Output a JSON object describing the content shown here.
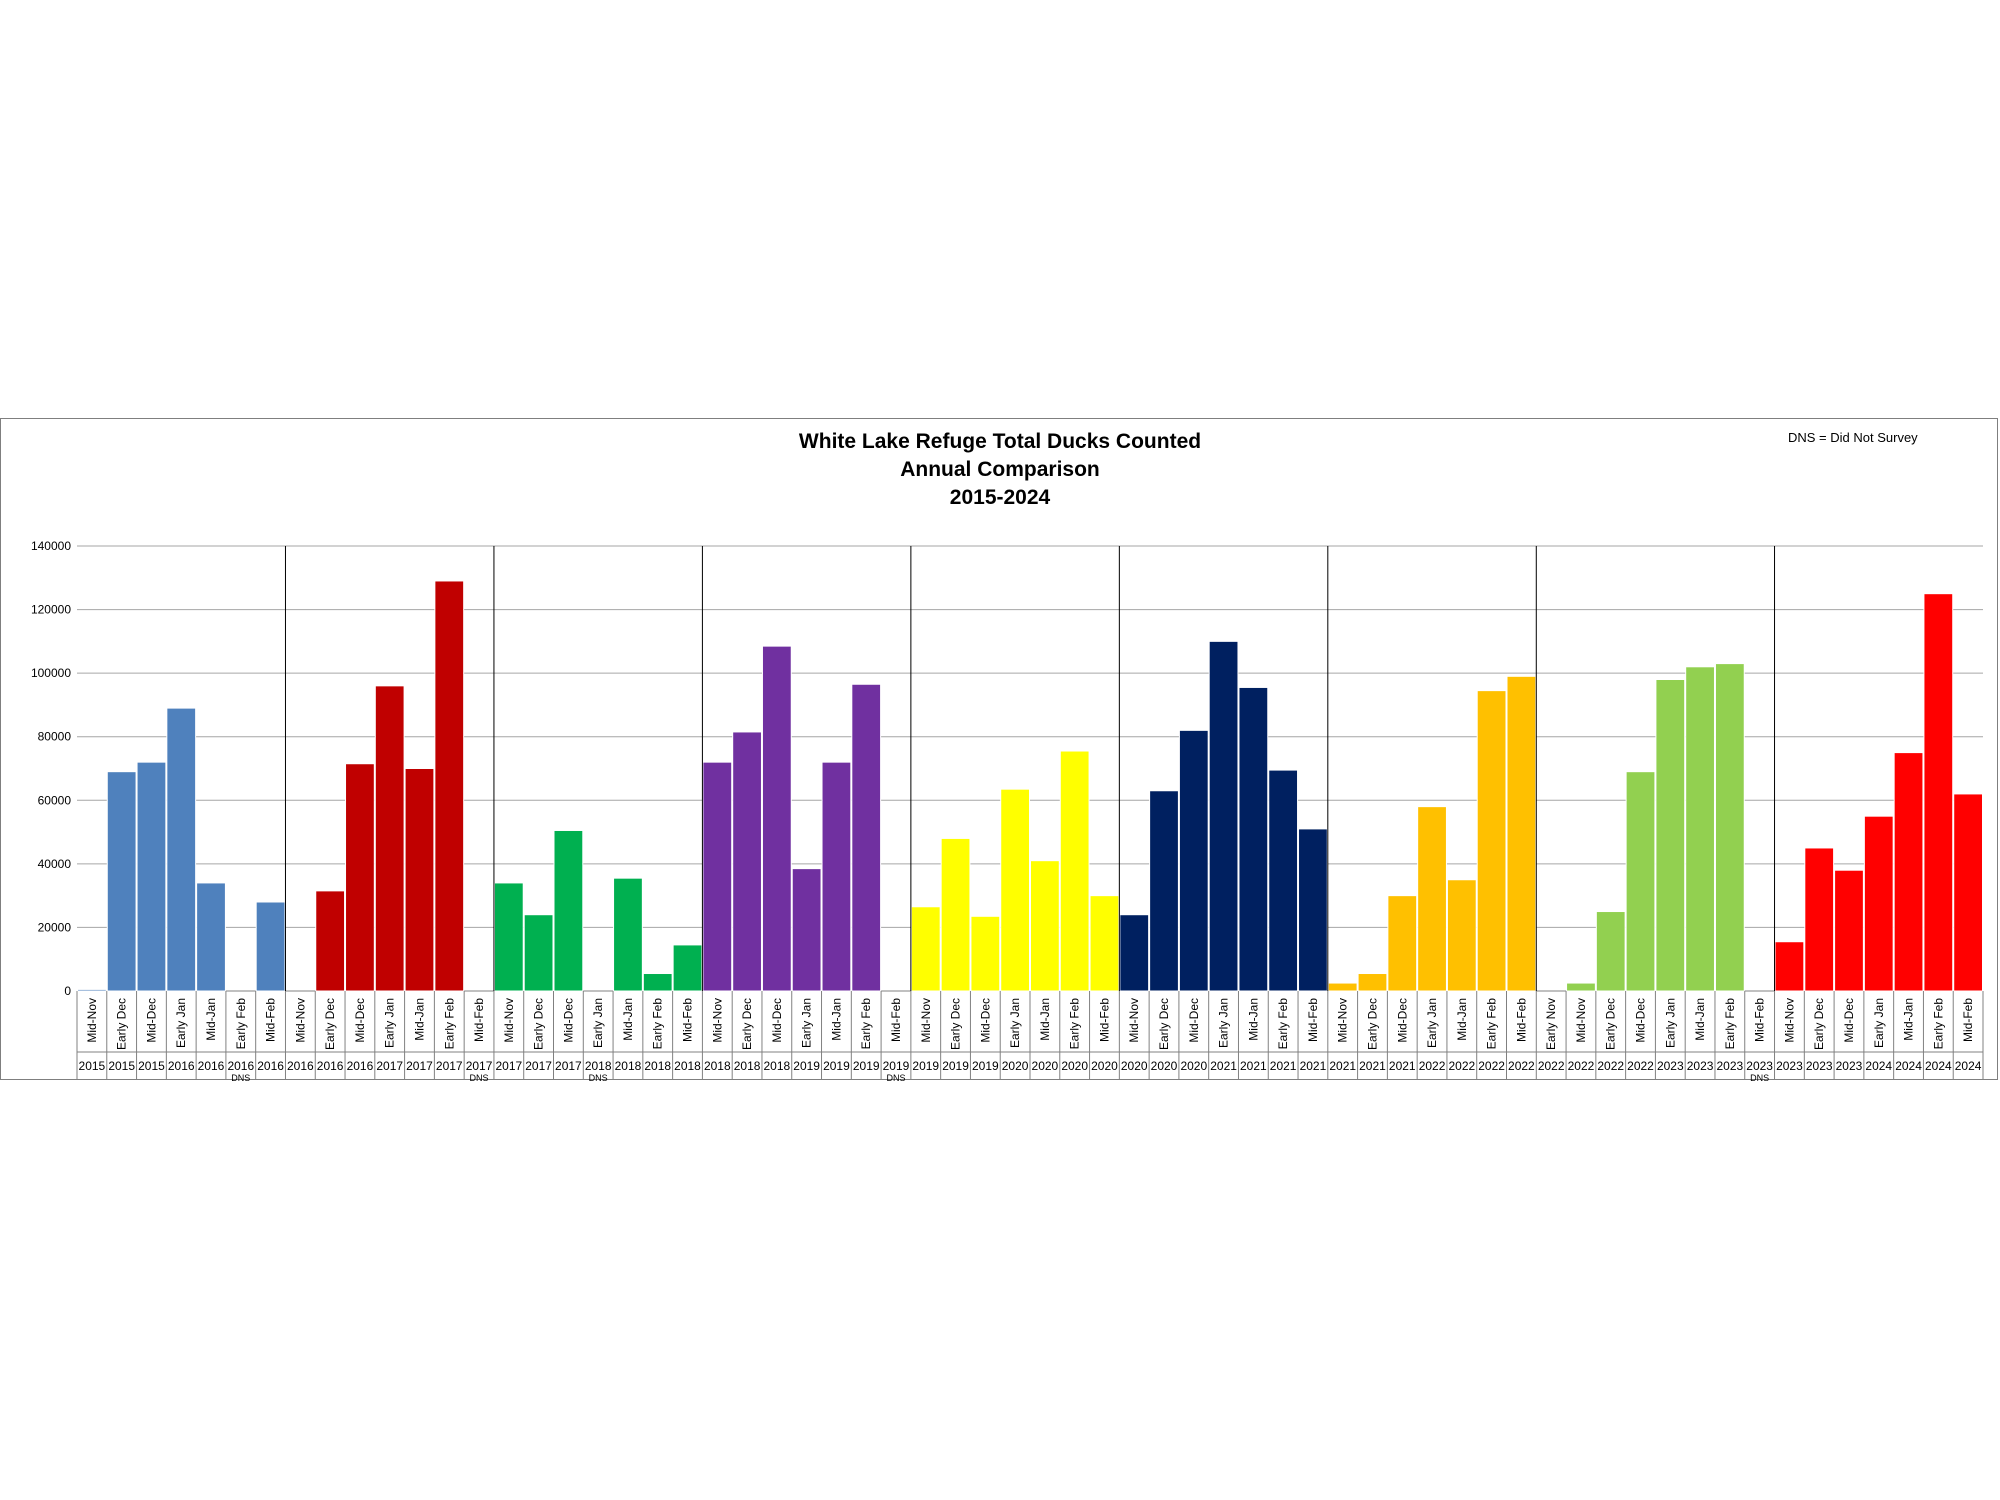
{
  "chart_data": {
    "type": "bar",
    "title": [
      "White Lake Refuge Total Ducks Counted",
      "Annual Comparison",
      "2015-2024"
    ],
    "note": "DNS = Did Not Survey",
    "dns_label": "DNS",
    "ylim": [
      0,
      140000
    ],
    "yticks": [
      "0",
      "20000",
      "40000",
      "60000",
      "80000",
      "100000",
      "120000",
      "140000"
    ],
    "grid": true,
    "categories": [
      {
        "label": "Mid-Nov",
        "year": "2015",
        "value": 500
      },
      {
        "label": "Early Dec",
        "year": "2015",
        "value": 69000
      },
      {
        "label": "Mid-Dec",
        "year": "2015",
        "value": 72000
      },
      {
        "label": "Early Jan",
        "year": "2016",
        "value": 89000
      },
      {
        "label": "Mid-Jan",
        "year": "2016",
        "value": 34000
      },
      {
        "label": "Early Feb",
        "year": "2016",
        "value": 0,
        "dns": true
      },
      {
        "label": "Mid-Feb",
        "year": "2016",
        "value": 28000
      },
      {
        "label": "Mid-Nov",
        "year": "2016",
        "value": 0
      },
      {
        "label": "Early Dec",
        "year": "2016",
        "value": 31500
      },
      {
        "label": "Mid-Dec",
        "year": "2016",
        "value": 71500
      },
      {
        "label": "Early Jan",
        "year": "2017",
        "value": 96000
      },
      {
        "label": "Mid-Jan",
        "year": "2017",
        "value": 70000
      },
      {
        "label": "Early Feb",
        "year": "2017",
        "value": 129000
      },
      {
        "label": "Mid-Feb",
        "year": "2017",
        "value": 0,
        "dns": true
      },
      {
        "label": "Mid-Nov",
        "year": "2017",
        "value": 34000
      },
      {
        "label": "Early Dec",
        "year": "2017",
        "value": 24000
      },
      {
        "label": "Mid-Dec",
        "year": "2017",
        "value": 50500
      },
      {
        "label": "Early Jan",
        "year": "2018",
        "value": 0,
        "dns": true
      },
      {
        "label": "Mid-Jan",
        "year": "2018",
        "value": 35500
      },
      {
        "label": "Early Feb",
        "year": "2018",
        "value": 5500
      },
      {
        "label": "Mid-Feb",
        "year": "2018",
        "value": 14500
      },
      {
        "label": "Mid-Nov",
        "year": "2018",
        "value": 72000
      },
      {
        "label": "Early Dec",
        "year": "2018",
        "value": 81500
      },
      {
        "label": "Mid-Dec",
        "year": "2018",
        "value": 108500
      },
      {
        "label": "Early Jan",
        "year": "2019",
        "value": 38500
      },
      {
        "label": "Mid-Jan",
        "year": "2019",
        "value": 72000
      },
      {
        "label": "Early Feb",
        "year": "2019",
        "value": 96500
      },
      {
        "label": "Mid-Feb",
        "year": "2019",
        "value": 0,
        "dns": true
      },
      {
        "label": "Mid-Nov",
        "year": "2019",
        "value": 26500
      },
      {
        "label": "Early Dec",
        "year": "2019",
        "value": 48000
      },
      {
        "label": "Mid-Dec",
        "year": "2019",
        "value": 23500
      },
      {
        "label": "Early Jan",
        "year": "2020",
        "value": 63500
      },
      {
        "label": "Mid-Jan",
        "year": "2020",
        "value": 41000
      },
      {
        "label": "Early Feb",
        "year": "2020",
        "value": 75500
      },
      {
        "label": "Mid-Feb",
        "year": "2020",
        "value": 30000
      },
      {
        "label": "Mid-Nov",
        "year": "2020",
        "value": 24000
      },
      {
        "label": "Early Dec",
        "year": "2020",
        "value": 63000
      },
      {
        "label": "Mid-Dec",
        "year": "2020",
        "value": 82000
      },
      {
        "label": "Early Jan",
        "year": "2021",
        "value": 110000
      },
      {
        "label": "Mid-Jan",
        "year": "2021",
        "value": 95500
      },
      {
        "label": "Early Feb",
        "year": "2021",
        "value": 69500
      },
      {
        "label": "Mid-Feb",
        "year": "2021",
        "value": 51000
      },
      {
        "label": "Mid-Nov",
        "year": "2021",
        "value": 2500
      },
      {
        "label": "Early Dec",
        "year": "2021",
        "value": 5500
      },
      {
        "label": "Mid-Dec",
        "year": "2021",
        "value": 30000
      },
      {
        "label": "Early Jan",
        "year": "2022",
        "value": 58000
      },
      {
        "label": "Mid-Jan",
        "year": "2022",
        "value": 35000
      },
      {
        "label": "Early Feb",
        "year": "2022",
        "value": 94500
      },
      {
        "label": "Mid-Feb",
        "year": "2022",
        "value": 99000
      },
      {
        "label": "Early Nov",
        "year": "2022",
        "value": 0
      },
      {
        "label": "Mid-Nov",
        "year": "2022",
        "value": 2500
      },
      {
        "label": "Early Dec",
        "year": "2022",
        "value": 25000
      },
      {
        "label": "Mid-Dec",
        "year": "2022",
        "value": 69000
      },
      {
        "label": "Early Jan",
        "year": "2023",
        "value": 98000
      },
      {
        "label": "Mid-Jan",
        "year": "2023",
        "value": 102000
      },
      {
        "label": "Early Feb",
        "year": "2023",
        "value": 103000
      },
      {
        "label": "Mid-Feb",
        "year": "2023",
        "value": 0,
        "dns": true
      },
      {
        "label": "Mid-Nov",
        "year": "2023",
        "value": 15500
      },
      {
        "label": "Early Dec",
        "year": "2023",
        "value": 45000
      },
      {
        "label": "Mid-Dec",
        "year": "2023",
        "value": 38000
      },
      {
        "label": "Early Jan",
        "year": "2024",
        "value": 55000
      },
      {
        "label": "Mid-Jan",
        "year": "2024",
        "value": 75000
      },
      {
        "label": "Early Feb",
        "year": "2024",
        "value": 125000
      },
      {
        "label": "Mid-Feb",
        "year": "2024",
        "value": 62000
      }
    ],
    "seasons": [
      {
        "count": 7,
        "color": "#4f81bd"
      },
      {
        "count": 7,
        "color": "#c00000"
      },
      {
        "count": 7,
        "color": "#00b050"
      },
      {
        "count": 7,
        "color": "#7030a0"
      },
      {
        "count": 7,
        "color": "#ffff00"
      },
      {
        "count": 7,
        "color": "#002060"
      },
      {
        "count": 7,
        "color": "#ffc000"
      },
      {
        "count": 8,
        "color": "#92d050"
      },
      {
        "count": 7,
        "color": "#ff0000"
      }
    ]
  }
}
